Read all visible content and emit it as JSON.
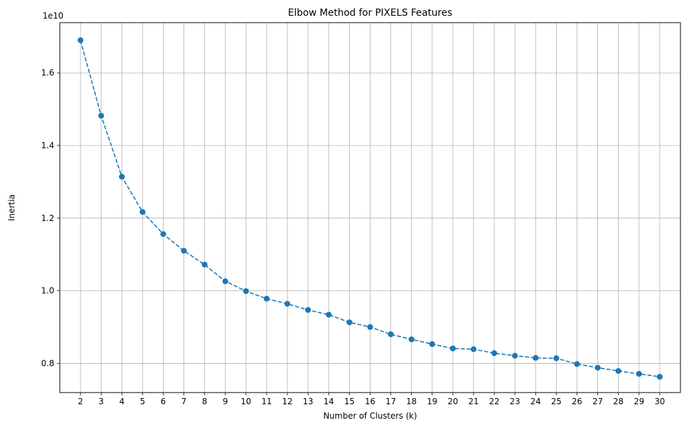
{
  "chart_data": {
    "type": "line",
    "title": "Elbow Method for PIXELS Features",
    "xlabel": "Number of Clusters (k)",
    "ylabel": "Inertia",
    "y_offset_label": "1e10",
    "y_scale": 10000000000,
    "xlim": [
      1,
      31
    ],
    "ylim": [
      0.7195,
      1.7384
    ],
    "grid": true,
    "x_ticks": [
      2,
      3,
      4,
      5,
      6,
      7,
      8,
      9,
      10,
      11,
      12,
      13,
      14,
      15,
      16,
      17,
      18,
      19,
      20,
      21,
      22,
      23,
      24,
      25,
      26,
      27,
      28,
      29,
      30
    ],
    "y_ticks": [
      0.8,
      1.0,
      1.2,
      1.4,
      1.6
    ],
    "series": [
      {
        "color": "#1f77b4",
        "line_style": "dashed",
        "marker": "circle",
        "x": [
          2,
          3,
          4,
          5,
          6,
          7,
          8,
          9,
          10,
          11,
          12,
          13,
          14,
          15,
          16,
          17,
          18,
          19,
          20,
          21,
          22,
          23,
          24,
          25,
          26,
          27,
          28,
          29,
          30
        ],
        "y": [
          1.69,
          1.482,
          1.314,
          1.217,
          1.156,
          1.11,
          1.072,
          1.026,
          0.999,
          0.978,
          0.964,
          0.947,
          0.934,
          0.913,
          0.9,
          0.88,
          0.866,
          0.853,
          0.841,
          0.839,
          0.828,
          0.821,
          0.815,
          0.814,
          0.798,
          0.788,
          0.779,
          0.771,
          0.763
        ]
      }
    ]
  }
}
